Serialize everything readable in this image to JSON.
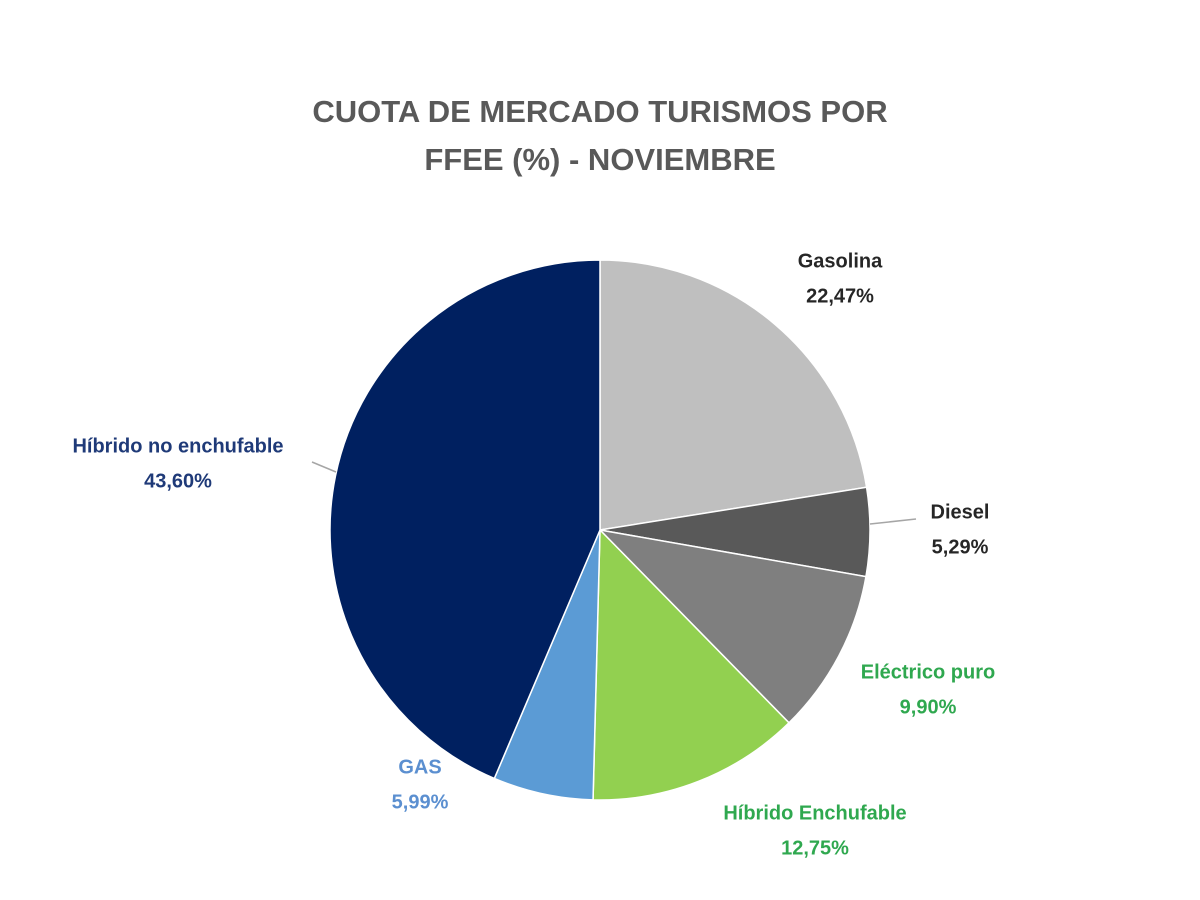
{
  "chart_data": {
    "type": "pie",
    "title": "CUOTA DE MERCADO TURISMOS POR FFEE (%)  - NOVIEMBRE",
    "categories": [
      "Gasolina",
      "Diesel",
      "Eléctrico puro",
      "Híbrido Enchufable",
      "GAS",
      "Híbrido no enchufable"
    ],
    "values": [
      22.47,
      5.29,
      9.9,
      12.75,
      5.99,
      43.6
    ],
    "value_labels": [
      "22,47%",
      "5,29%",
      "9,90%",
      "12,75%",
      "5,99%",
      "43,60%"
    ],
    "colors": [
      "#bfbfbf",
      "#595959",
      "#7f7f7f",
      "#92d050",
      "#5b9bd5",
      "#002060"
    ],
    "label_colors": [
      "#262626",
      "#262626",
      "#2fa84f",
      "#2fa84f",
      "#5b8fd0",
      "#1f3a78"
    ]
  }
}
